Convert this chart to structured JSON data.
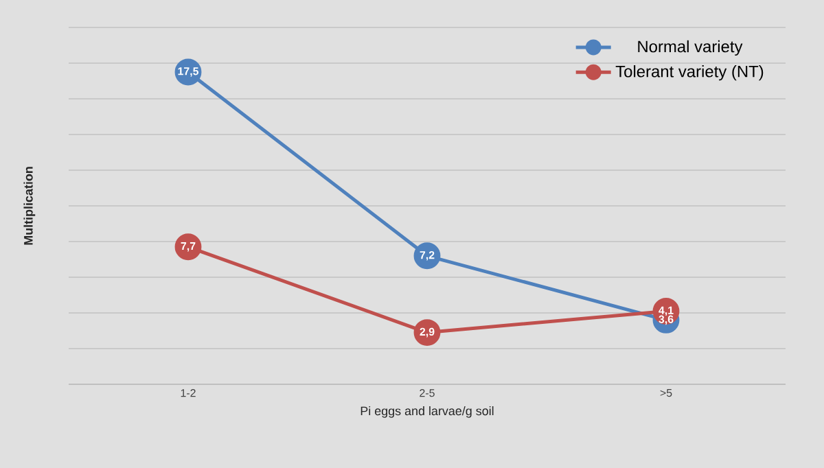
{
  "chart_data": {
    "type": "line",
    "xlabel": "Pi eggs and larvae/g soil",
    "ylabel": "Multiplication",
    "categories": [
      "1-2",
      "2-5",
      ">5"
    ],
    "series": [
      {
        "name": "Normal variety",
        "color": "#4f81bd",
        "values": [
          17.5,
          7.2,
          3.6
        ],
        "value_labels": [
          "17,5",
          "7,2",
          "3,6"
        ]
      },
      {
        "name": "Tolerant variety (NT)",
        "color": "#c0504d",
        "values": [
          7.7,
          2.9,
          4.1
        ],
        "value_labels": [
          "7,7",
          "2,9",
          "4,1"
        ]
      }
    ],
    "ylim": [
      0,
      20
    ],
    "yticks": [
      {
        "value": 0,
        "label": null
      },
      {
        "value": 2,
        "label": null
      },
      {
        "value": 4,
        "label": null
      },
      {
        "value": 6,
        "label": null
      },
      {
        "value": 8,
        "label": null
      },
      {
        "value": 10,
        "label": null
      },
      {
        "value": 12,
        "label": null
      },
      {
        "value": 14,
        "label": null
      },
      {
        "value": 16,
        "label": null
      },
      {
        "value": 18,
        "label": null
      },
      {
        "value": 20,
        "label": null
      }
    ],
    "grid": "y",
    "legend": "top right",
    "marker": "circle",
    "line_style": "solid",
    "tick_labels": "x"
  }
}
